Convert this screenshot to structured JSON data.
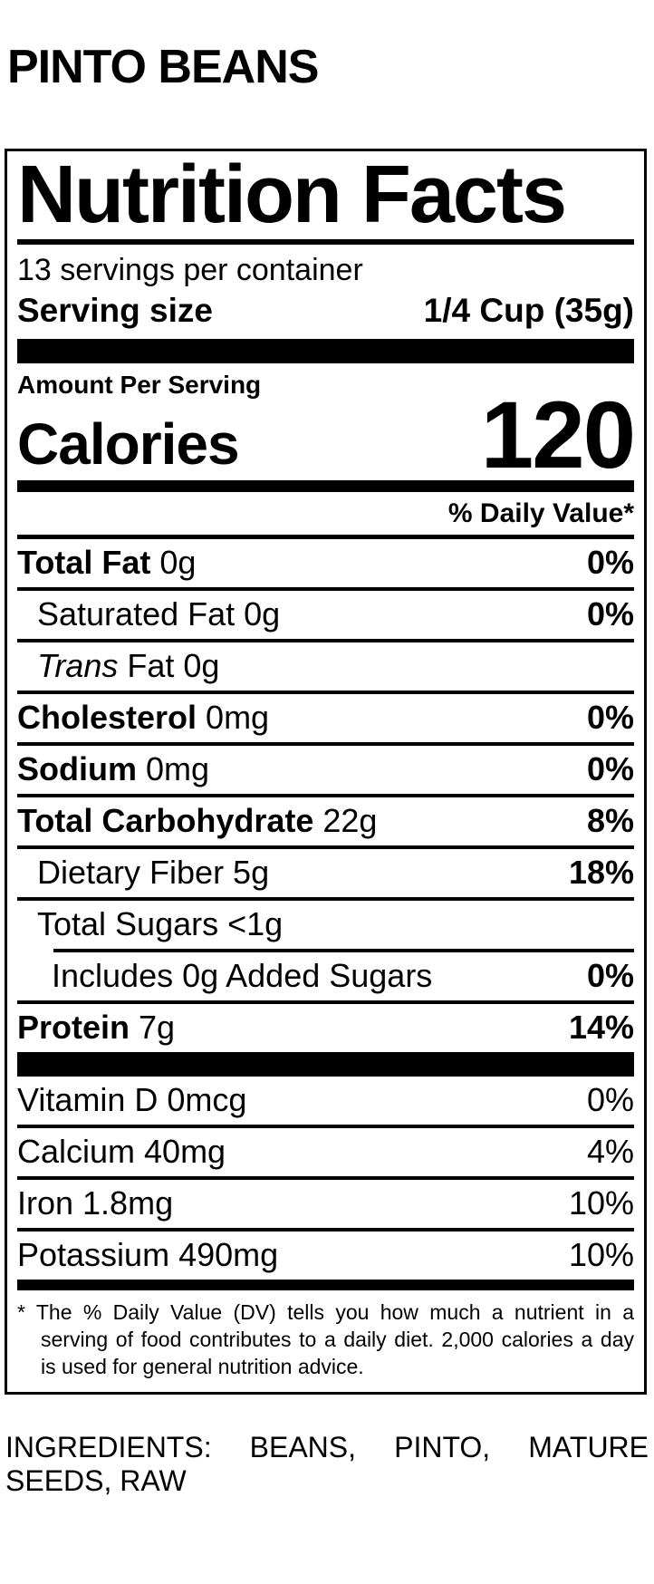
{
  "product": {
    "title": "PINTO BEANS"
  },
  "nutrition_facts": {
    "title": "Nutrition Facts",
    "servings_per_container": "13 servings per container",
    "serving_size_label": "Serving size",
    "serving_size_value": "1/4 Cup (35g)",
    "amount_per_serving_label": "Amount Per Serving",
    "calories_label": "Calories",
    "calories_value": "120",
    "daily_value_header": "% Daily Value*",
    "nutrient_rows": [
      {
        "bold": "Total Fat",
        "rest": " 0g",
        "pct": "0%",
        "pct_bold": true,
        "indent": 0
      },
      {
        "rest": "Saturated Fat 0g",
        "pct": "0%",
        "pct_bold": true,
        "indent": 1
      },
      {
        "italic": "Trans",
        "rest": " Fat 0g",
        "pct": "",
        "pct_bold": false,
        "indent": 1
      },
      {
        "bold": "Cholesterol",
        "rest": " 0mg",
        "pct": "0%",
        "pct_bold": true,
        "indent": 0
      },
      {
        "bold": "Sodium",
        "rest": " 0mg",
        "pct": "0%",
        "pct_bold": true,
        "indent": 0
      },
      {
        "bold": "Total Carbohydrate",
        "rest": " 22g",
        "pct": "8%",
        "pct_bold": true,
        "indent": 0
      },
      {
        "rest": "Dietary Fiber 5g",
        "pct": "18%",
        "pct_bold": true,
        "indent": 1
      },
      {
        "rest": "Total Sugars <1g",
        "pct": "",
        "pct_bold": false,
        "indent": 1
      },
      {
        "rest": "Includes 0g Added Sugars",
        "pct": "0%",
        "pct_bold": true,
        "indent": 2
      },
      {
        "bold": "Protein",
        "rest": " 7g",
        "pct": "14%",
        "pct_bold": true,
        "indent": 0
      }
    ],
    "vitamin_rows": [
      {
        "rest": "Vitamin D 0mcg",
        "pct": "0%"
      },
      {
        "rest": "Calcium 40mg",
        "pct": "4%"
      },
      {
        "rest": "Iron 1.8mg",
        "pct": "10%"
      },
      {
        "rest": "Potassium 490mg",
        "pct": "10%"
      }
    ],
    "footnote_lines": [
      "* The % Daily Value (DV) tells you how much a nutrient in a",
      "serving of food contributes to a daily diet. 2,000 calories a day",
      "is used for general nutrition advice."
    ]
  },
  "ingredients": {
    "lines": [
      "INGREDIENTS: BEANS, PINTO, MATURE",
      "SEEDS, RAW"
    ]
  },
  "colors": {
    "ink": "#000000",
    "background": "#ffffff"
  }
}
